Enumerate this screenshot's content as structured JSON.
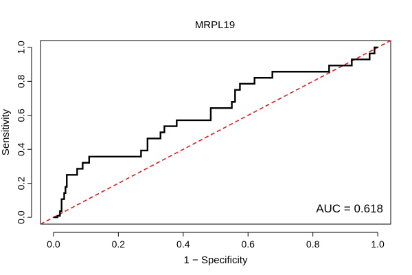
{
  "chart_data": {
    "type": "line",
    "title": "MRPL19",
    "xlabel": "1 − Specificity",
    "ylabel": "Sensitivity",
    "xlim": [
      -0.04,
      1.04
    ],
    "ylim": [
      -0.04,
      1.04
    ],
    "x_ticks": [
      0.0,
      0.2,
      0.4,
      0.6,
      0.8,
      1.0
    ],
    "x_tick_labels": [
      "0.0",
      "0.2",
      "0.4",
      "0.6",
      "0.8",
      "1.0"
    ],
    "y_ticks": [
      0.0,
      0.2,
      0.4,
      0.6,
      0.8,
      1.0
    ],
    "y_tick_labels": [
      "0.0",
      "0.2",
      "0.4",
      "0.6",
      "0.8",
      "1.0"
    ],
    "grid": false,
    "annotation": "AUC = 0.618",
    "series": [
      {
        "name": "ROC curve",
        "color": "#000000",
        "style": "solid",
        "points": [
          [
            0.0,
            0.0
          ],
          [
            0.012,
            0.0
          ],
          [
            0.012,
            0.009
          ],
          [
            0.02,
            0.009
          ],
          [
            0.02,
            0.036
          ],
          [
            0.025,
            0.036
          ],
          [
            0.025,
            0.107
          ],
          [
            0.033,
            0.107
          ],
          [
            0.033,
            0.143
          ],
          [
            0.037,
            0.143
          ],
          [
            0.037,
            0.179
          ],
          [
            0.041,
            0.179
          ],
          [
            0.041,
            0.25
          ],
          [
            0.073,
            0.25
          ],
          [
            0.073,
            0.286
          ],
          [
            0.09,
            0.286
          ],
          [
            0.09,
            0.321
          ],
          [
            0.11,
            0.321
          ],
          [
            0.11,
            0.357
          ],
          [
            0.27,
            0.357
          ],
          [
            0.27,
            0.393
          ],
          [
            0.29,
            0.393
          ],
          [
            0.29,
            0.464
          ],
          [
            0.33,
            0.464
          ],
          [
            0.33,
            0.5
          ],
          [
            0.342,
            0.5
          ],
          [
            0.342,
            0.536
          ],
          [
            0.38,
            0.536
          ],
          [
            0.38,
            0.571
          ],
          [
            0.485,
            0.571
          ],
          [
            0.485,
            0.643
          ],
          [
            0.55,
            0.643
          ],
          [
            0.55,
            0.679
          ],
          [
            0.56,
            0.679
          ],
          [
            0.56,
            0.75
          ],
          [
            0.575,
            0.75
          ],
          [
            0.575,
            0.786
          ],
          [
            0.62,
            0.786
          ],
          [
            0.62,
            0.821
          ],
          [
            0.675,
            0.821
          ],
          [
            0.675,
            0.857
          ],
          [
            0.85,
            0.857
          ],
          [
            0.85,
            0.893
          ],
          [
            0.92,
            0.893
          ],
          [
            0.92,
            0.929
          ],
          [
            0.975,
            0.929
          ],
          [
            0.975,
            0.964
          ],
          [
            0.99,
            0.964
          ],
          [
            0.99,
            1.0
          ],
          [
            1.0,
            1.0
          ]
        ]
      },
      {
        "name": "Reference line",
        "color": "#e8191e",
        "style": "dashed",
        "points": [
          [
            -0.04,
            -0.04
          ],
          [
            1.04,
            1.04
          ]
        ]
      }
    ]
  }
}
